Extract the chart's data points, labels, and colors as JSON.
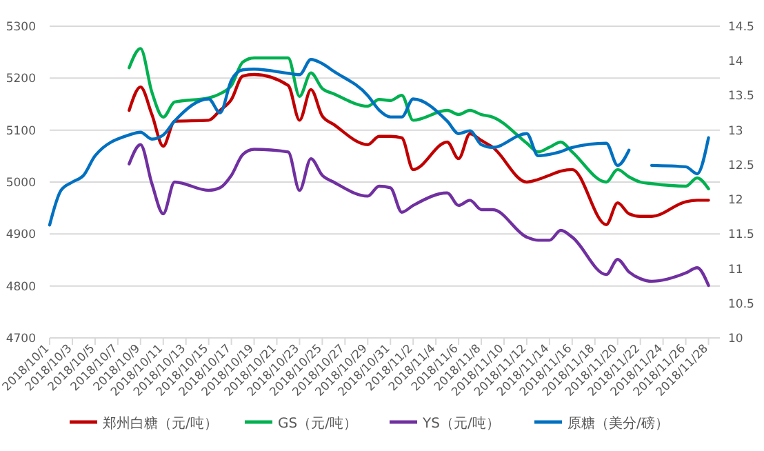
{
  "chart_data": {
    "type": "line",
    "x": [
      "2018-10-08",
      "2018-10-09",
      "2018-10-10",
      "2018-10-11",
      "2018-10-12",
      "2018-10-15",
      "2018-10-16",
      "2018-10-17",
      "2018-10-18",
      "2018-10-19",
      "2018-10-22",
      "2018-10-23",
      "2018-10-24",
      "2018-10-25",
      "2018-10-26",
      "2018-10-29",
      "2018-10-30",
      "2018-10-31",
      "2018-11-01",
      "2018-11-02",
      "2018-11-05",
      "2018-11-06",
      "2018-11-07",
      "2018-11-08",
      "2018-11-09",
      "2018-11-12",
      "2018-11-13",
      "2018-11-14",
      "2018-11-15",
      "2018-11-16",
      "2018-11-19",
      "2018-11-20",
      "2018-11-21",
      "2018-11-22",
      "2018-11-23",
      "2018-11-26",
      "2018-11-27",
      "2018-11-28"
    ],
    "series": [
      {
        "name": "郑州白糖（元/吨）",
        "color": "#c00000",
        "values": [
          5138,
          5183,
          5130,
          5069,
          5117,
          5119,
          5138,
          5159,
          5204,
          5207,
          5186,
          5119,
          5178,
          5127,
          5111,
          5072,
          5088,
          5088,
          5085,
          5024,
          5077,
          5045,
          5093,
          5080,
          5067,
          5000,
          5005,
          5013,
          5021,
          5024,
          4918,
          4960,
          4939,
          4934,
          4934,
          4962,
          4965,
          4965
        ]
      },
      {
        "name": "GS（元/吨）",
        "color": "#00b050",
        "values": [
          5220,
          5257,
          5173,
          5125,
          5154,
          5162,
          5170,
          5186,
          5231,
          5239,
          5239,
          5165,
          5210,
          5180,
          5170,
          5146,
          5159,
          5157,
          5167,
          5119,
          5138,
          5130,
          5138,
          5130,
          5125,
          5075,
          5058,
          5067,
          5077,
          5058,
          5000,
          5024,
          5010,
          5000,
          4997,
          4992,
          5008,
          4987
        ]
      },
      {
        "name": "YS（元/吨）",
        "color": "#7030a0",
        "values": [
          5035,
          5072,
          4997,
          4939,
          5000,
          4984,
          4989,
          5013,
          5053,
          5063,
          5058,
          4984,
          5045,
          5013,
          5000,
          4973,
          4992,
          4989,
          4942,
          4955,
          4979,
          4955,
          4965,
          4947,
          4947,
          4894,
          4888,
          4888,
          4907,
          4894,
          4822,
          4851,
          4827,
          4814,
          4809,
          4825,
          4835,
          4801
        ]
      },
      {
        "name": "原糖（美分/磅）",
        "color": "#0070c0",
        "axis": "y2",
        "x": [
          "2018-10-01",
          "2018-10-02",
          "2018-10-03",
          "2018-10-04",
          "2018-10-05",
          "2018-10-08",
          "2018-10-09",
          "2018-10-10",
          "2018-10-11",
          "2018-10-12",
          "2018-10-15",
          "2018-10-16",
          "2018-10-17",
          "2018-10-18",
          "2018-10-19",
          "2018-10-22",
          "2018-10-23",
          "2018-10-24",
          "2018-10-25",
          "2018-10-26",
          "2018-10-29",
          "2018-10-30",
          "2018-10-31",
          "2018-11-01",
          "2018-11-02",
          "2018-11-05",
          "2018-11-06",
          "2018-11-07",
          "2018-11-08",
          "2018-11-09",
          "2018-11-12",
          "2018-11-13",
          "2018-11-14",
          "2018-11-15",
          "2018-11-16",
          "2018-11-19",
          "2018-11-20",
          "2018-11-21",
          "2018-11-22",
          "2018-11-23",
          "2018-11-26",
          "2018-11-27",
          "2018-11-28"
        ],
        "values": [
          11.63,
          12.13,
          12.25,
          12.35,
          12.63,
          12.93,
          12.97,
          12.87,
          12.93,
          13.13,
          13.45,
          13.25,
          13.72,
          13.87,
          13.88,
          13.82,
          13.8,
          14.02,
          13.96,
          13.85,
          13.5,
          13.29,
          13.19,
          13.19,
          13.45,
          13.13,
          12.95,
          12.99,
          12.79,
          12.75,
          12.95,
          12.63,
          12.65,
          12.69,
          12.75,
          12.81,
          12.49,
          12.71,
          null,
          12.49,
          12.47,
          12.37,
          12.89
        ]
      }
    ],
    "xlim": [
      "2018-10-01",
      "2018-11-29"
    ],
    "xticks": [
      {
        "value": "2018-10-01",
        "label": "2018/10/1"
      },
      {
        "value": "2018-10-03",
        "label": "2018/10/3"
      },
      {
        "value": "2018-10-05",
        "label": "2018/10/5"
      },
      {
        "value": "2018-10-07",
        "label": "2018/10/7"
      },
      {
        "value": "2018-10-09",
        "label": "2018/10/9"
      },
      {
        "value": "2018-10-11",
        "label": "2018/10/11"
      },
      {
        "value": "2018-10-13",
        "label": "2018/10/13"
      },
      {
        "value": "2018-10-15",
        "label": "2018/10/15"
      },
      {
        "value": "2018-10-17",
        "label": "2018/10/17"
      },
      {
        "value": "2018-10-19",
        "label": "2018/10/19"
      },
      {
        "value": "2018-10-21",
        "label": "2018/10/21"
      },
      {
        "value": "2018-10-23",
        "label": "2018/10/23"
      },
      {
        "value": "2018-10-25",
        "label": "2018/10/25"
      },
      {
        "value": "2018-10-27",
        "label": "2018/10/27"
      },
      {
        "value": "2018-10-29",
        "label": "2018/10/29"
      },
      {
        "value": "2018-10-31",
        "label": "2018/10/31"
      },
      {
        "value": "2018-11-02",
        "label": "2018/11/2"
      },
      {
        "value": "2018-11-04",
        "label": "2018/11/4"
      },
      {
        "value": "2018-11-06",
        "label": "2018/11/6"
      },
      {
        "value": "2018-11-08",
        "label": "2018/11/8"
      },
      {
        "value": "2018-11-10",
        "label": "2018/11/10"
      },
      {
        "value": "2018-11-12",
        "label": "2018/11/12"
      },
      {
        "value": "2018-11-14",
        "label": "2018/11/14"
      },
      {
        "value": "2018-11-16",
        "label": "2018/11/16"
      },
      {
        "value": "2018-11-18",
        "label": "2018/11/18"
      },
      {
        "value": "2018-11-20",
        "label": "2018/11/20"
      },
      {
        "value": "2018-11-22",
        "label": "2018/11/22"
      },
      {
        "value": "2018-11-24",
        "label": "2018/11/24"
      },
      {
        "value": "2018-11-26",
        "label": "2018/11/26"
      },
      {
        "value": "2018-11-28",
        "label": "2018/11/28"
      }
    ],
    "ylim": [
      4700,
      5300
    ],
    "yticks": [
      4700,
      4800,
      4900,
      5000,
      5100,
      5200,
      5300
    ],
    "y2lim": [
      10,
      14.5
    ],
    "y2ticks": [
      10,
      10.5,
      11,
      11.5,
      12,
      12.5,
      13,
      13.5,
      14,
      14.5
    ],
    "grid": "y",
    "legend": "bottom",
    "marker": "none",
    "line_style": "solid"
  }
}
